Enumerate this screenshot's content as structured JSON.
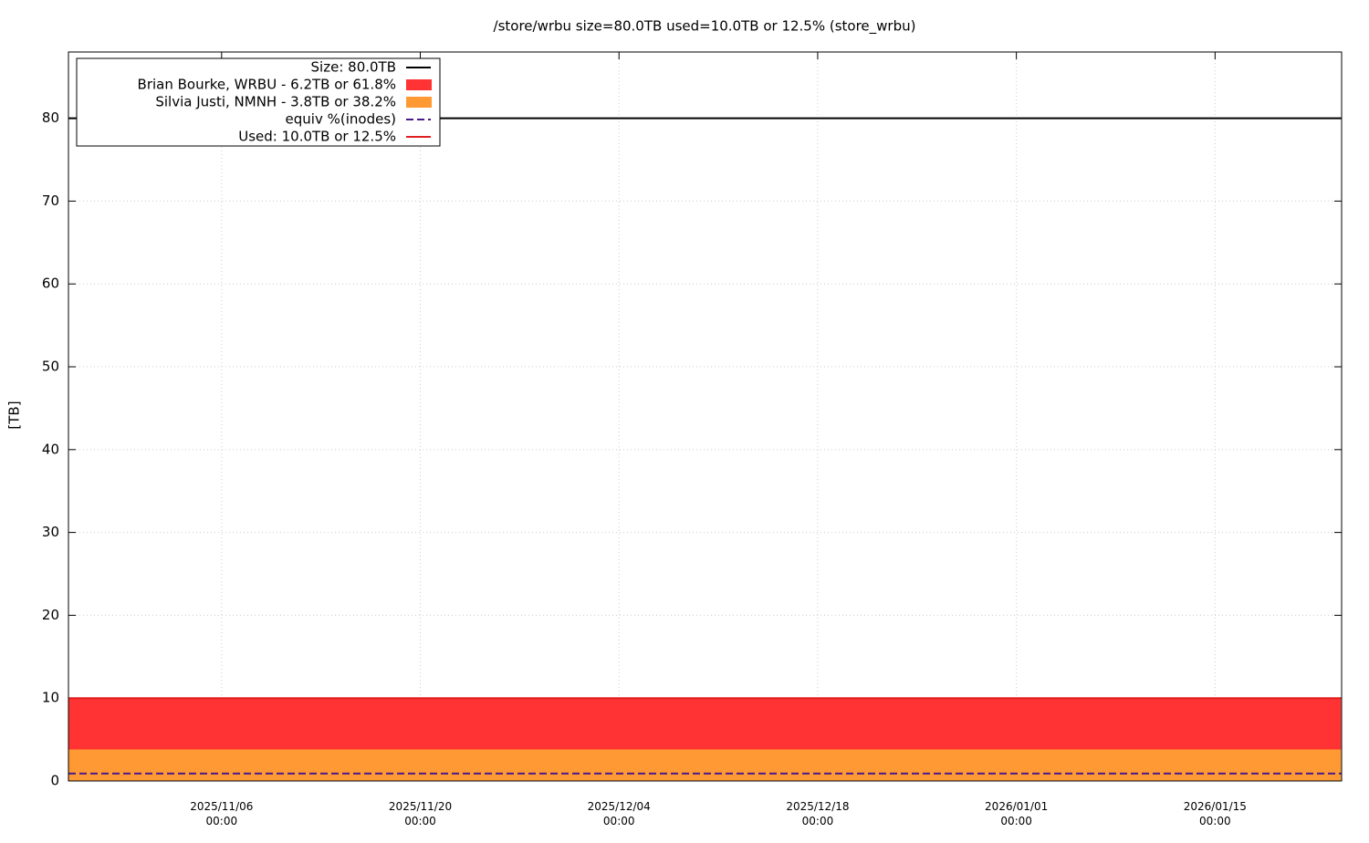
{
  "chart_data": {
    "type": "area",
    "title": "/store/wrbu size=80.0TB used=10.0TB or 12.5% (store_wrbu)",
    "y_label": "[TB]",
    "x": [
      "2025-10-26T05:00",
      "2026-01-23T21:00"
    ],
    "xlim": [
      "2025-10-26T05:00",
      "2026-01-23T22:00"
    ],
    "xticks": [
      {
        "value": "2025-11-06T00:00",
        "label": "2025/11/06\n00:00"
      },
      {
        "value": "2025-11-20T00:00",
        "label": "2025/11/20\n00:00"
      },
      {
        "value": "2025-12-04T00:00",
        "label": "2025/12/04\n00:00"
      },
      {
        "value": "2025-12-18T00:00",
        "label": "2025/12/18\n00:00"
      },
      {
        "value": "2026-01-01T00:00",
        "label": "2026/01/01\n00:00"
      },
      {
        "value": "2026-01-15T00:00",
        "label": "2026/01/15\n00:00"
      }
    ],
    "ylim": [
      0,
      88
    ],
    "yticks": [
      0,
      10,
      20,
      30,
      40,
      50,
      60,
      70,
      80
    ],
    "grid": true,
    "legend": "upper left",
    "series": [
      {
        "name": "Size: 80.0TB",
        "kind": "line",
        "color": "#000000",
        "values": [
          80,
          80
        ]
      },
      {
        "name": "Brian Bourke, WRBU - 6.2TB or 61.8%",
        "kind": "area",
        "color": "#ff3333",
        "values": [
          6.2,
          6.2
        ]
      },
      {
        "name": "Silvia Justi, NMNH - 3.8TB or 38.2%",
        "kind": "area",
        "color": "#ff9933",
        "values": [
          3.8,
          3.8
        ]
      },
      {
        "name": "equiv %(inodes)",
        "kind": "line",
        "dash": true,
        "color": "#4b1a8c",
        "values": [
          0.9,
          0.9
        ]
      },
      {
        "name": "Used: 10.0TB or 12.5%",
        "kind": "line",
        "color": "#e02020",
        "values": [
          10,
          10
        ]
      }
    ]
  }
}
